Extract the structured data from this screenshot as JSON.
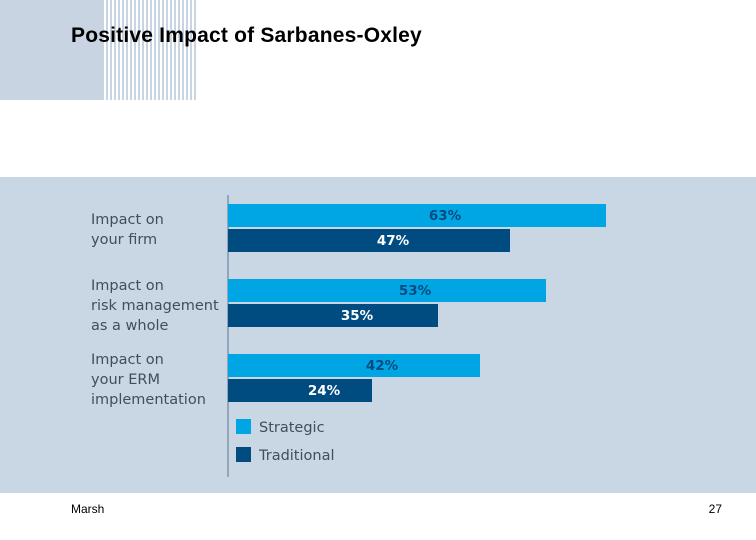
{
  "slide": {
    "title": "Positive Impact of Sarbanes-Oxley",
    "footer_left": "Marsh",
    "page_number": "27"
  },
  "colors": {
    "strategic": "#00a6e3",
    "traditional": "#004b80",
    "panel_background": "#c9d6e3"
  },
  "chart_data": {
    "type": "bar",
    "orientation": "horizontal",
    "categories": [
      [
        "Impact on",
        "your firm"
      ],
      [
        "Impact on",
        "risk management",
        "as a whole"
      ],
      [
        "Impact on",
        "your ERM",
        "implementation"
      ]
    ],
    "series": [
      {
        "name": "Strategic",
        "values": [
          63,
          53,
          42
        ],
        "labels": [
          "63%",
          "53%",
          "42%"
        ]
      },
      {
        "name": "Traditional",
        "values": [
          47,
          35,
          24
        ],
        "labels": [
          "47%",
          "35%",
          "24%"
        ]
      }
    ],
    "xlim": [
      0,
      70
    ],
    "unit": "%",
    "legend_position": "bottom-left",
    "grid": false
  }
}
